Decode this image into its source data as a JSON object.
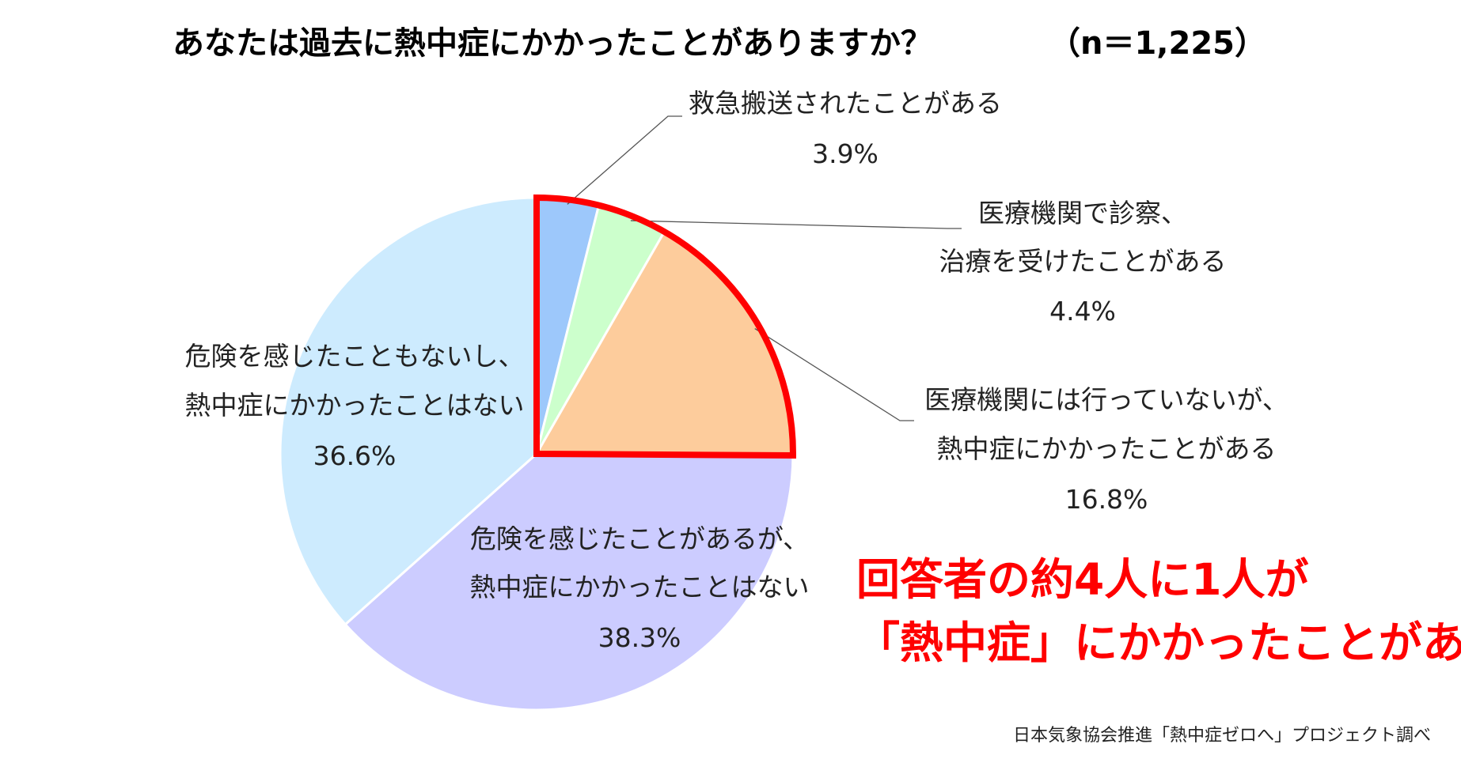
{
  "chart_data": {
    "type": "pie",
    "title": "あなたは過去に熱中症にかかったことがありますか？",
    "n_label": "（n＝1,225）",
    "slices": [
      {
        "lines": [
          "救急搬送されたことがある"
        ],
        "value_label": "3.9%",
        "value": 3.9,
        "color": "#9dc8fb"
      },
      {
        "lines": [
          "医療機関で診察、",
          "治療を受けたことがある"
        ],
        "value_label": "4.4%",
        "value": 4.4,
        "color": "#ccffcc"
      },
      {
        "lines": [
          "医療機関には行っていないが、",
          "熱中症にかかったことがある"
        ],
        "value_label": "16.8%",
        "value": 16.8,
        "color": "#fdcc9c"
      },
      {
        "lines": [
          "危険を感じたことがあるが、",
          "熱中症にかかったことはない"
        ],
        "value_label": "38.3%",
        "value": 38.3,
        "color": "#ccccff"
      },
      {
        "lines": [
          "危険を感じたこともないし、",
          "熱中症にかかったことはない"
        ],
        "value_label": "36.6%",
        "value": 36.6,
        "color": "#cdebfe"
      }
    ],
    "highlight_color": "#ff0000",
    "highlight_text": [
      "回答者の約4人に1人が",
      "「熱中症」にかかったことがある"
    ],
    "source": "日本気象協会推進「熱中症ゼロへ」プロジェクト調べ"
  }
}
